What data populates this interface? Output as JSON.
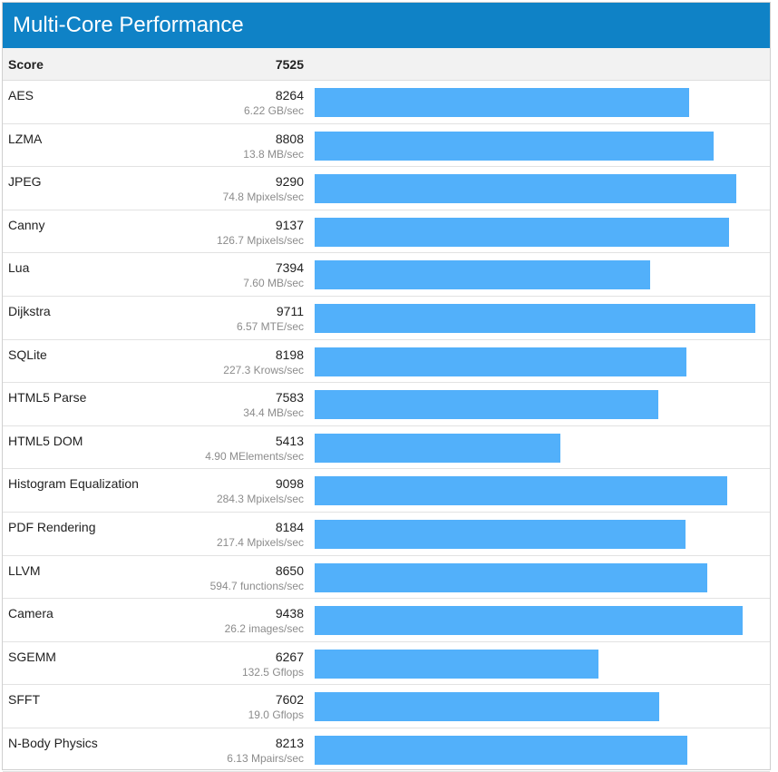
{
  "title": "Multi-Core Performance",
  "score": {
    "label": "Score",
    "value": "7525"
  },
  "colors": {
    "header": "#0f82c6",
    "bar": "#52b0fa"
  },
  "chart_data": {
    "type": "bar",
    "orientation": "horizontal",
    "title": "Multi-Core Performance",
    "categories": [
      "AES",
      "LZMA",
      "JPEG",
      "Canny",
      "Lua",
      "Dijkstra",
      "SQLite",
      "HTML5 Parse",
      "HTML5 DOM",
      "Histogram Equalization",
      "PDF Rendering",
      "LLVM",
      "Camera",
      "SGEMM",
      "SFFT",
      "N-Body Physics"
    ],
    "values": [
      8264,
      8808,
      9290,
      9137,
      7394,
      9711,
      8198,
      7583,
      5413,
      9098,
      8184,
      8650,
      9438,
      6267,
      7602,
      8213
    ],
    "rates": [
      "6.22 GB/sec",
      "13.8 MB/sec",
      "74.8 Mpixels/sec",
      "126.7 Mpixels/sec",
      "7.60 MB/sec",
      "6.57 MTE/sec",
      "227.3 Krows/sec",
      "34.4 MB/sec",
      "4.90 MElements/sec",
      "284.3 Mpixels/sec",
      "217.4 Mpixels/sec",
      "594.7 functions/sec",
      "26.2 images/sec",
      "132.5 Gflops",
      "19.0 Gflops",
      "6.13 Mpairs/sec"
    ],
    "xlim": [
      0,
      10000
    ],
    "grid": false,
    "legend": "none"
  }
}
